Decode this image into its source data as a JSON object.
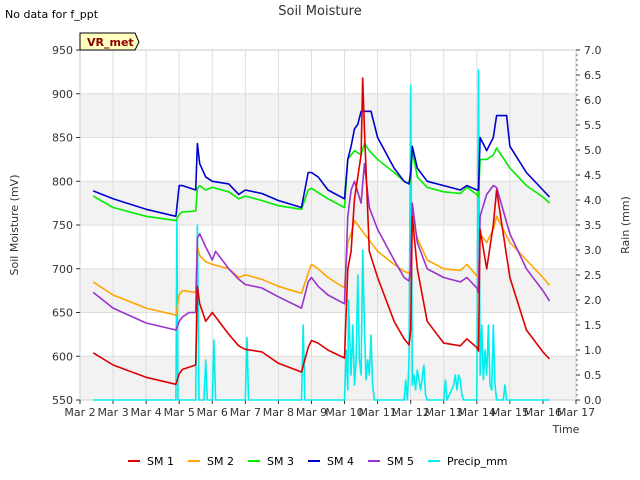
{
  "chart_data": {
    "type": "line",
    "title": "Soil Moisture",
    "note": "No data for f_ppt",
    "badge": "VR_met",
    "xlabel": "Time",
    "ylabel": "Soil Moisture (mV)",
    "y2label": "Rain (mm)",
    "xlim": [
      2,
      17
    ],
    "ylim": [
      550,
      950
    ],
    "y2lim": [
      0,
      7
    ],
    "x_ticks": [
      2,
      3,
      4,
      5,
      6,
      7,
      8,
      9,
      10,
      11,
      12,
      13,
      14,
      15,
      16,
      17
    ],
    "x_tick_labels": [
      "Mar 2",
      "Mar 3",
      "Mar 4",
      "Mar 5",
      "Mar 6",
      "Mar 7",
      "Mar 8",
      "Mar 9",
      "Mar 10",
      "Mar 11",
      "Mar 12",
      "Mar 13",
      "Mar 14",
      "Mar 15",
      "Mar 16",
      "Mar 17"
    ],
    "y_ticks": [
      550,
      600,
      650,
      700,
      750,
      800,
      850,
      900,
      950
    ],
    "y2_ticks": [
      0.0,
      0.5,
      1.0,
      1.5,
      2.0,
      2.5,
      3.0,
      3.5,
      4.0,
      4.5,
      5.0,
      5.5,
      6.0,
      6.5,
      7.0
    ],
    "y2_tick_labels": [
      "0.0",
      "0.5",
      "1.0",
      "1.5",
      "2.0",
      "2.5",
      "3.0",
      "3.5",
      "4.0",
      "4.5",
      "5.0",
      "5.5",
      "6.0",
      "6.5",
      "7.0"
    ],
    "colors": {
      "SM 1": "#dd0000",
      "SM 2": "#ffa500",
      "SM 3": "#00ee00",
      "SM 4": "#0000cc",
      "SM 5": "#9a32cd",
      "Precip_mm": "#00eeee",
      "band": "#f2f2f2",
      "grid": "#dddddd",
      "badge_bg": "#ffffc0"
    },
    "series": [
      {
        "name": "SM 1",
        "axis": "left",
        "x": [
          2.4,
          3.0,
          4.0,
          4.9,
          5.0,
          5.1,
          5.5,
          5.55,
          5.62,
          5.8,
          6.0,
          6.5,
          6.8,
          7.0,
          7.5,
          8.0,
          8.7,
          8.9,
          9.0,
          9.2,
          9.5,
          10.0,
          10.1,
          10.2,
          10.3,
          10.5,
          10.55,
          10.6,
          10.75,
          11.0,
          11.2,
          11.5,
          11.8,
          11.95,
          12.0,
          12.05,
          12.2,
          12.5,
          13.0,
          13.5,
          13.7,
          14.0,
          14.05,
          14.1,
          14.3,
          14.5,
          14.6,
          15.0,
          15.5,
          16.0,
          16.2
        ],
        "y": [
          604,
          590,
          576,
          568,
          580,
          585,
          590,
          680,
          660,
          640,
          650,
          625,
          612,
          608,
          605,
          592,
          582,
          610,
          618,
          615,
          607,
          598,
          700,
          720,
          780,
          830,
          918,
          860,
          720,
          690,
          670,
          640,
          620,
          613,
          630,
          760,
          700,
          640,
          615,
          612,
          620,
          610,
          606,
          745,
          700,
          750,
          790,
          690,
          630,
          605,
          597
        ]
      },
      {
        "name": "SM 2",
        "axis": "left",
        "x": [
          2.4,
          3.0,
          4.0,
          4.9,
          5.0,
          5.1,
          5.5,
          5.55,
          5.62,
          5.8,
          6.0,
          6.5,
          6.8,
          7.0,
          7.5,
          8.0,
          8.7,
          8.9,
          9.0,
          9.2,
          9.5,
          10.0,
          10.1,
          10.2,
          10.3,
          10.5,
          11.0,
          11.5,
          11.8,
          11.95,
          12.0,
          12.05,
          12.2,
          12.5,
          13.0,
          13.5,
          13.7,
          14.0,
          14.05,
          14.1,
          14.3,
          14.5,
          14.6,
          15.0,
          15.5,
          16.0,
          16.2
        ],
        "y": [
          685,
          670,
          655,
          647,
          670,
          675,
          673,
          725,
          715,
          708,
          705,
          700,
          690,
          693,
          688,
          680,
          672,
          695,
          705,
          700,
          690,
          678,
          730,
          740,
          755,
          745,
          720,
          705,
          697,
          695,
          705,
          760,
          735,
          710,
          700,
          698,
          705,
          692,
          688,
          740,
          730,
          745,
          760,
          730,
          710,
          690,
          681
        ]
      },
      {
        "name": "SM 3",
        "axis": "left",
        "x": [
          2.4,
          3.0,
          4.0,
          4.9,
          5.0,
          5.1,
          5.5,
          5.55,
          5.62,
          5.8,
          6.0,
          6.5,
          6.8,
          7.0,
          7.5,
          8.0,
          8.7,
          8.9,
          9.0,
          9.2,
          9.5,
          10.0,
          10.1,
          10.2,
          10.3,
          10.5,
          10.6,
          10.75,
          11.0,
          11.5,
          11.8,
          11.95,
          12.0,
          12.05,
          12.2,
          12.5,
          13.0,
          13.5,
          13.7,
          14.0,
          14.05,
          14.1,
          14.3,
          14.5,
          14.6,
          15.0,
          15.5,
          16.0,
          16.2
        ],
        "y": [
          783,
          770,
          760,
          755,
          762,
          765,
          766,
          792,
          795,
          790,
          793,
          788,
          780,
          783,
          778,
          772,
          768,
          790,
          792,
          787,
          780,
          770,
          825,
          830,
          835,
          830,
          843,
          835,
          825,
          810,
          800,
          797,
          800,
          835,
          805,
          793,
          788,
          786,
          793,
          785,
          782,
          825,
          825,
          830,
          838,
          815,
          795,
          782,
          775
        ]
      },
      {
        "name": "SM 4",
        "axis": "left",
        "x": [
          2.4,
          3.0,
          4.0,
          4.9,
          5.0,
          5.1,
          5.5,
          5.55,
          5.62,
          5.8,
          6.0,
          6.5,
          6.8,
          7.0,
          7.5,
          8.0,
          8.7,
          8.9,
          9.0,
          9.2,
          9.5,
          10.0,
          10.1,
          10.2,
          10.3,
          10.4,
          10.5,
          10.6,
          10.8,
          11.0,
          11.5,
          11.8,
          11.95,
          12.0,
          12.05,
          12.2,
          12.5,
          13.0,
          13.5,
          13.7,
          14.0,
          14.05,
          14.1,
          14.3,
          14.5,
          14.6,
          14.9,
          15.0,
          15.5,
          16.0,
          16.2
        ],
        "y": [
          789,
          780,
          768,
          760,
          795,
          795,
          790,
          843,
          820,
          805,
          800,
          797,
          785,
          790,
          786,
          778,
          770,
          810,
          810,
          805,
          790,
          780,
          825,
          840,
          860,
          865,
          880,
          880,
          880,
          850,
          815,
          800,
          797,
          810,
          840,
          815,
          800,
          795,
          790,
          795,
          790,
          790,
          850,
          835,
          850,
          875,
          875,
          840,
          810,
          790,
          782
        ]
      },
      {
        "name": "SM 5",
        "axis": "left",
        "x": [
          2.4,
          3.0,
          4.0,
          4.9,
          5.0,
          5.1,
          5.3,
          5.5,
          5.55,
          5.62,
          5.8,
          6.0,
          6.1,
          6.5,
          6.8,
          7.0,
          7.5,
          8.0,
          8.7,
          8.9,
          9.0,
          9.2,
          9.5,
          10.0,
          10.1,
          10.2,
          10.3,
          10.5,
          10.6,
          10.75,
          11.0,
          11.5,
          11.8,
          11.95,
          12.0,
          12.05,
          12.2,
          12.5,
          13.0,
          13.5,
          13.7,
          14.0,
          14.05,
          14.1,
          14.3,
          14.5,
          14.6,
          15.0,
          15.5,
          16.0,
          16.2
        ],
        "y": [
          673,
          655,
          638,
          630,
          640,
          645,
          650,
          650,
          735,
          740,
          725,
          710,
          720,
          700,
          688,
          682,
          678,
          668,
          655,
          685,
          690,
          680,
          670,
          660,
          760,
          790,
          800,
          775,
          820,
          770,
          745,
          710,
          690,
          686,
          700,
          775,
          730,
          700,
          690,
          685,
          690,
          678,
          673,
          760,
          785,
          795,
          793,
          740,
          700,
          675,
          663
        ]
      },
      {
        "name": "Precip_mm",
        "axis": "right",
        "x": [
          2.4,
          4.9,
          4.93,
          4.96,
          5.0,
          5.1,
          5.5,
          5.55,
          5.6,
          5.75,
          5.8,
          5.85,
          6.0,
          6.05,
          6.1,
          6.2,
          7.0,
          7.05,
          7.1,
          8.7,
          8.75,
          8.8,
          10.0,
          10.05,
          10.1,
          10.12,
          10.2,
          10.25,
          10.3,
          10.35,
          10.4,
          10.45,
          10.5,
          10.55,
          10.6,
          10.65,
          10.7,
          10.75,
          10.8,
          10.85,
          10.9,
          11.0,
          11.8,
          11.85,
          11.9,
          11.95,
          12.0,
          12.05,
          12.1,
          12.15,
          12.2,
          12.3,
          12.4,
          12.45,
          12.5,
          13.0,
          13.05,
          13.1,
          13.3,
          13.35,
          13.4,
          13.45,
          13.5,
          13.55,
          13.6,
          14.0,
          14.05,
          14.1,
          14.15,
          14.2,
          14.25,
          14.3,
          14.35,
          14.4,
          14.45,
          14.5,
          14.55,
          14.6,
          14.8,
          14.85,
          14.9,
          15.0,
          16.2
        ],
        "y": [
          0,
          0,
          3.6,
          0,
          0,
          0,
          0,
          3.5,
          0,
          0,
          0.8,
          0,
          0,
          1.2,
          0,
          0,
          0,
          1.25,
          0,
          0,
          1.5,
          0,
          0,
          1.0,
          0.2,
          2.0,
          0.5,
          1.5,
          0.3,
          0.8,
          2.5,
          0.8,
          0.5,
          3.0,
          1.5,
          0.4,
          0.8,
          0.5,
          1.3,
          0.3,
          0,
          0,
          0,
          0.4,
          0,
          0.8,
          6.3,
          0.3,
          0.5,
          0.2,
          0.6,
          0.2,
          0.7,
          0.1,
          0,
          0,
          0.4,
          0,
          0.3,
          0.5,
          0.2,
          0.5,
          0.4,
          0.1,
          0,
          0,
          6.6,
          0.5,
          1.5,
          0.4,
          1.0,
          0.5,
          1.5,
          0.3,
          0.2,
          1.5,
          0.3,
          0,
          0,
          0.3,
          0,
          0,
          0
        ]
      }
    ]
  }
}
